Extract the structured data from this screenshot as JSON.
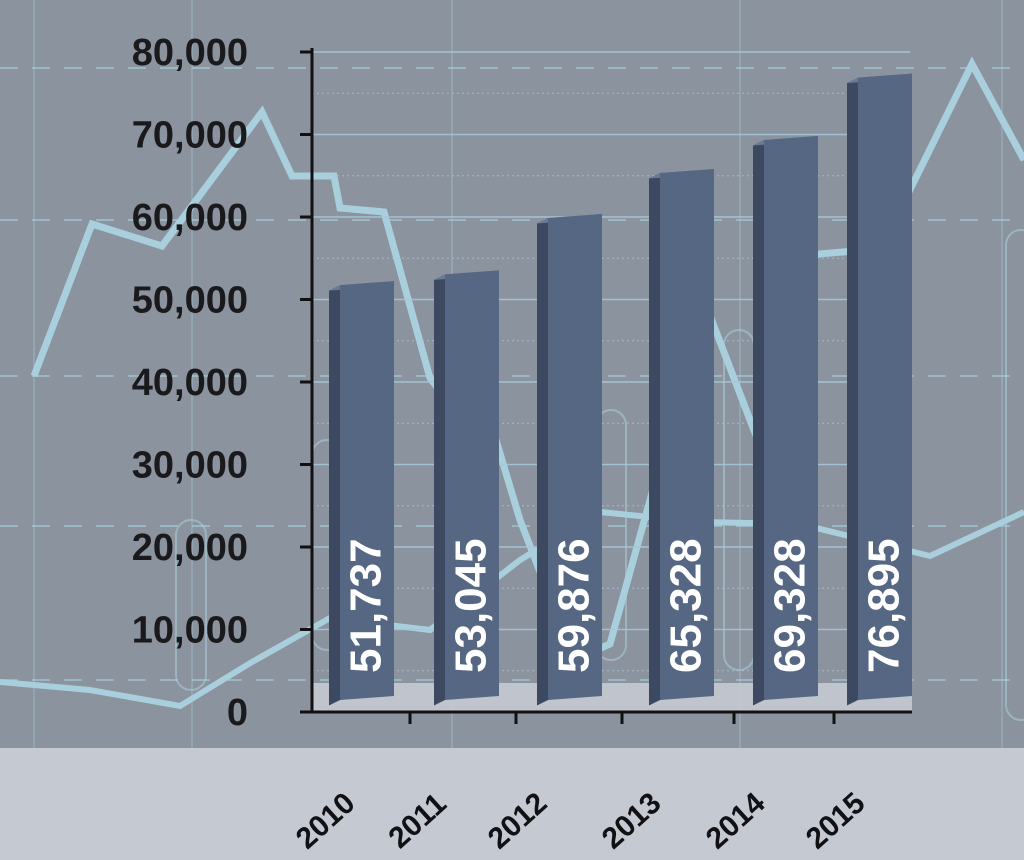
{
  "chart_data": {
    "type": "bar",
    "title": "",
    "xlabel": "",
    "ylabel": "",
    "categories": [
      "2010",
      "2011",
      "2012",
      "2013",
      "2014",
      "2015"
    ],
    "values": [
      51737,
      53045,
      59876,
      65328,
      69328,
      76895
    ],
    "value_labels": [
      "51,737",
      "53,045",
      "59,876",
      "65,328",
      "69,328",
      "76,895"
    ],
    "ylim": [
      0,
      80000
    ],
    "yticks": [
      0,
      10000,
      20000,
      30000,
      40000,
      50000,
      60000,
      70000,
      80000
    ],
    "ytick_labels": [
      "0",
      "10,000",
      "20,000",
      "30,000",
      "40,000",
      "50,000",
      "60,000",
      "70,000",
      "80,000"
    ],
    "grid": true,
    "legend": "none",
    "colors": {
      "background": "#8a939e",
      "axis_band": "#c5cad2",
      "bar_front": "#566783",
      "bar_side": "#3c4960",
      "bar_top": "#6a7b96",
      "decor_line": "#a9cfdd",
      "grid_line": "#a7c6d9",
      "text": "#1a1a1c",
      "bar_label": "#ffffff"
    }
  }
}
